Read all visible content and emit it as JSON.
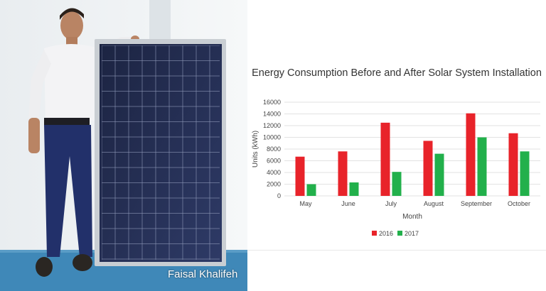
{
  "caption": "Faisal Khalifeh",
  "chart_data": {
    "type": "bar",
    "title": "Energy Consumption Before and After Solar System Installation",
    "xlabel": "Month",
    "ylabel": "Units (kWh)",
    "categories": [
      "May",
      "June",
      "July",
      "August",
      "September",
      "October"
    ],
    "series": [
      {
        "name": "2016",
        "color": "#e8232a",
        "values": [
          6700,
          7600,
          12500,
          9400,
          14100,
          10700
        ]
      },
      {
        "name": "2017",
        "color": "#22b04b",
        "values": [
          2000,
          2300,
          4100,
          7200,
          10000,
          7600
        ]
      }
    ],
    "ylim": [
      0,
      16000
    ],
    "yticks": [
      0,
      2000,
      4000,
      6000,
      8000,
      10000,
      12000,
      14000,
      16000
    ],
    "grid": true,
    "legend": "bottom"
  }
}
